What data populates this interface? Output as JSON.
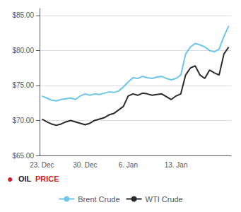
{
  "chart_data": {
    "type": "line",
    "categories": [
      "23. Dec",
      null,
      null,
      null,
      null,
      null,
      null,
      null,
      null,
      "30. Dec",
      null,
      null,
      null,
      null,
      null,
      null,
      null,
      null,
      "6. Jan",
      null,
      null,
      null,
      null,
      null,
      null,
      null,
      null,
      null,
      "13. Jan",
      null,
      null,
      null,
      null,
      null,
      null,
      null,
      null,
      null,
      null,
      null
    ],
    "series": [
      {
        "name": "Brent Crude",
        "color": "#6ec6ea",
        "values": [
          73.5,
          73.2,
          72.9,
          72.8,
          73.0,
          73.1,
          73.2,
          73.0,
          73.5,
          73.8,
          73.6,
          73.8,
          73.7,
          73.9,
          74.1,
          74.0,
          74.2,
          74.8,
          75.5,
          76.1,
          76.0,
          76.3,
          76.1,
          76.0,
          76.2,
          76.3,
          76.0,
          75.8,
          76.0,
          76.5,
          79.5,
          80.5,
          81.0,
          80.8,
          80.5,
          80.0,
          79.8,
          80.2,
          82.0,
          83.5
        ]
      },
      {
        "name": "WTI Crude",
        "color": "#2a2a2a",
        "values": [
          70.2,
          69.8,
          69.5,
          69.3,
          69.5,
          69.8,
          70.0,
          69.8,
          69.6,
          69.4,
          69.6,
          70.0,
          70.2,
          70.4,
          70.8,
          71.0,
          71.5,
          72.0,
          73.5,
          73.8,
          73.6,
          73.9,
          73.8,
          73.6,
          73.7,
          73.8,
          73.4,
          73.0,
          73.5,
          73.8,
          76.5,
          77.5,
          77.8,
          76.5,
          76.0,
          77.2,
          76.8,
          76.5,
          79.5,
          80.5
        ]
      }
    ],
    "ylim": [
      65.0,
      86.0
    ],
    "yticks": [
      {
        "value": 65,
        "label": "$65.00"
      },
      {
        "value": 70,
        "label": "$70.00"
      },
      {
        "value": 75,
        "label": "$75.00"
      },
      {
        "value": 80,
        "label": "$80.00"
      },
      {
        "value": 85,
        "label": "$85.00"
      }
    ],
    "grid": true,
    "legend": "bottom",
    "annotations": [
      {
        "text": "●",
        "color": "#cc2222"
      },
      {
        "text": "OIL",
        "color": "#1a1a2e"
      },
      {
        "text": "PRICE",
        "color": "#cc2222"
      }
    ]
  }
}
